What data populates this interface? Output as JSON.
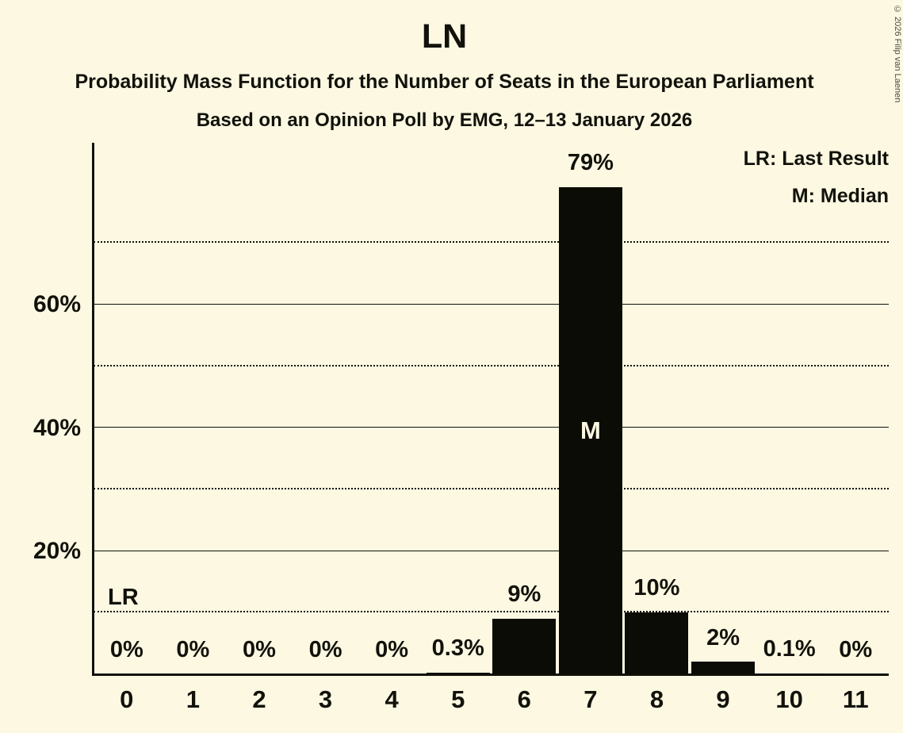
{
  "header": {
    "title": "LN",
    "subtitle": "Probability Mass Function for the Number of Seats in the European Parliament",
    "poll_line": "Based on an Opinion Poll by EMG, 12–13 January 2026"
  },
  "legend": {
    "last_result": "LR: Last Result",
    "median": "M: Median"
  },
  "copyright": "© 2026 Filip van Laenen",
  "colors": {
    "background": "#fcf8e2",
    "bar": "#0c0c06",
    "text": "#12120b"
  },
  "chart_data": {
    "type": "bar",
    "title": "LN",
    "xlabel": "",
    "ylabel": "",
    "categories": [
      "0",
      "1",
      "2",
      "3",
      "4",
      "5",
      "6",
      "7",
      "8",
      "9",
      "10",
      "11"
    ],
    "values": [
      0,
      0,
      0,
      0,
      0,
      0.3,
      9,
      79,
      10,
      2,
      0.1,
      0
    ],
    "bar_labels": [
      "0%",
      "0%",
      "0%",
      "0%",
      "0%",
      "0.3%",
      "9%",
      "79%",
      "10%",
      "2%",
      "0.1%",
      "0%"
    ],
    "ylim": [
      0,
      86
    ],
    "yticks": [
      {
        "value": 20,
        "label": "20%"
      },
      {
        "value": 40,
        "label": "40%"
      },
      {
        "value": 60,
        "label": "60%"
      }
    ],
    "dotted_gridlines": [
      10,
      30,
      50,
      70
    ],
    "legend_position": "top-right",
    "median": {
      "category": "7",
      "label": "M"
    },
    "last_result": {
      "label": "LR",
      "line_value": 10
    }
  }
}
